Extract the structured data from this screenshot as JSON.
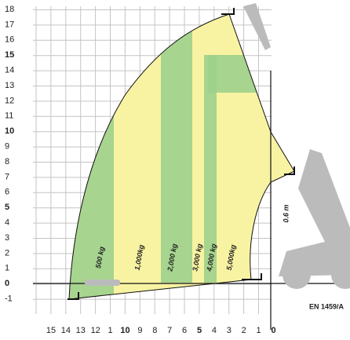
{
  "y_axis": {
    "labels": [
      "18",
      "17",
      "16",
      "15",
      "14",
      "13",
      "12",
      "11",
      "10",
      "9",
      "8",
      "7",
      "6",
      "5",
      "4",
      "3",
      "2",
      "1",
      "0",
      "-1"
    ]
  },
  "x_axis": {
    "labels": [
      "15",
      "14",
      "13",
      "12",
      "1",
      "10",
      "9",
      "8",
      "7",
      "6",
      "5",
      "4",
      "3",
      "2",
      "1",
      "0"
    ]
  },
  "load_zones": [
    "500 kg",
    "1,000kg",
    "2,000 kg",
    "3,000 kg",
    "4,000 kg",
    "5,000kg"
  ],
  "dimension": "0.6 m",
  "standard": "EN 1459/A"
}
